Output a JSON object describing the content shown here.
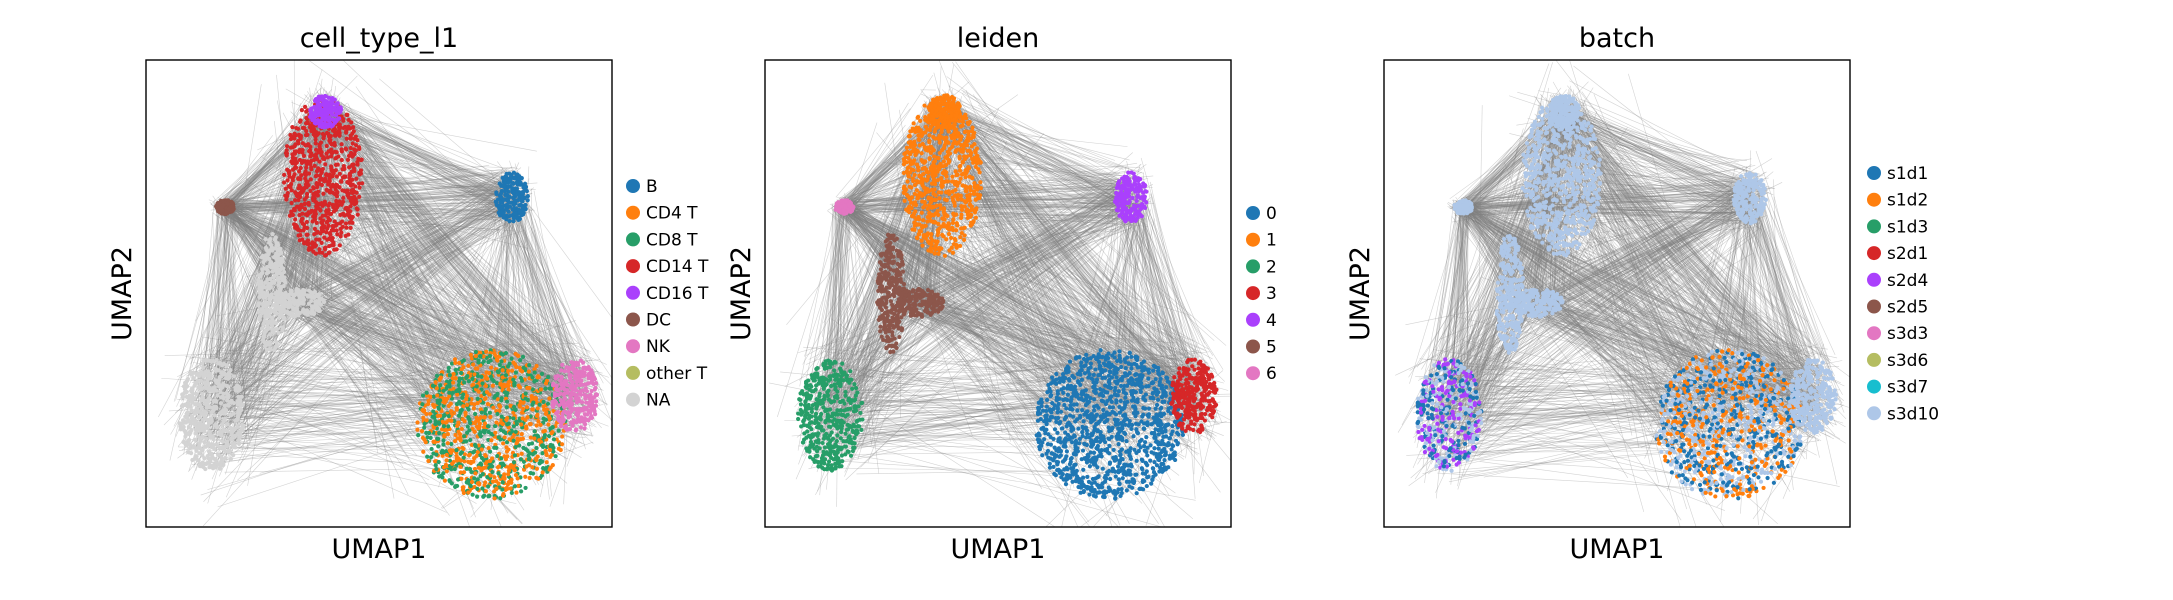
{
  "chart_data": [
    {
      "type": "scatter",
      "title": "cell_type_l1",
      "xlabel": "UMAP1",
      "ylabel": "UMAP2",
      "grid": false,
      "axis_ticks": false,
      "legend_placement": "right",
      "edge_color": "#808080",
      "series": [
        {
          "name": "B",
          "color": "#1f77b4"
        },
        {
          "name": "CD4 T",
          "color": "#ff7f0e"
        },
        {
          "name": "CD8 T",
          "color": "#279e68"
        },
        {
          "name": "CD14 T",
          "color": "#d62728"
        },
        {
          "name": "CD16 T",
          "color": "#aa40fc"
        },
        {
          "name": "DC",
          "color": "#8c564b"
        },
        {
          "name": "NK",
          "color": "#e377c2"
        },
        {
          "name": "other T",
          "color": "#b5bd61"
        },
        {
          "name": "NA",
          "color": "#d3d3d3"
        }
      ]
    },
    {
      "type": "scatter",
      "title": "leiden",
      "xlabel": "UMAP1",
      "ylabel": "UMAP2",
      "grid": false,
      "axis_ticks": false,
      "legend_placement": "right",
      "edge_color": "#808080",
      "series": [
        {
          "name": "0",
          "color": "#1f77b4"
        },
        {
          "name": "1",
          "color": "#ff7f0e"
        },
        {
          "name": "2",
          "color": "#279e68"
        },
        {
          "name": "3",
          "color": "#d62728"
        },
        {
          "name": "4",
          "color": "#aa40fc"
        },
        {
          "name": "5",
          "color": "#8c564b"
        },
        {
          "name": "6",
          "color": "#e377c2"
        }
      ]
    },
    {
      "type": "scatter",
      "title": "batch",
      "xlabel": "UMAP1",
      "ylabel": "UMAP2",
      "grid": false,
      "axis_ticks": false,
      "legend_placement": "right",
      "edge_color": "#808080",
      "series": [
        {
          "name": "s1d1",
          "color": "#1f77b4"
        },
        {
          "name": "s1d2",
          "color": "#ff7f0e"
        },
        {
          "name": "s1d3",
          "color": "#279e68"
        },
        {
          "name": "s2d1",
          "color": "#d62728"
        },
        {
          "name": "s2d4",
          "color": "#aa40fc"
        },
        {
          "name": "s2d5",
          "color": "#8c564b"
        },
        {
          "name": "s3d3",
          "color": "#e377c2"
        },
        {
          "name": "s3d6",
          "color": "#b5bd61"
        },
        {
          "name": "s3d7",
          "color": "#17becf"
        },
        {
          "name": "s3d10",
          "color": "#aec7e8"
        }
      ]
    }
  ]
}
